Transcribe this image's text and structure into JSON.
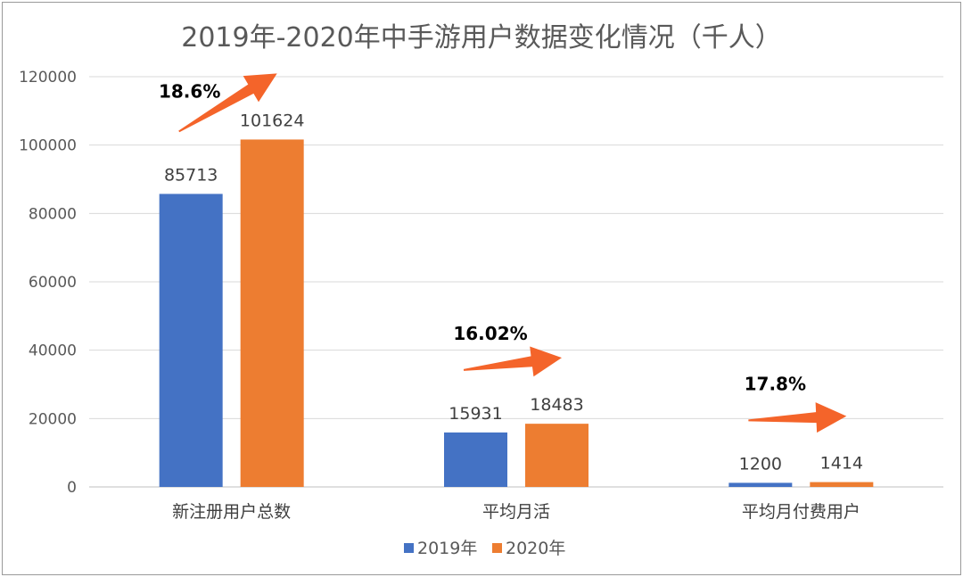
{
  "chart_data": {
    "type": "bar",
    "title": "2019年-2020年中手游用户数据变化情况（千人）",
    "categories": [
      "新注册用户总数",
      "平均月活",
      "平均月付费用户"
    ],
    "series": [
      {
        "name": "2019年",
        "values": [
          85713,
          15931,
          1200
        ],
        "color": "#4472C4"
      },
      {
        "name": "2020年",
        "values": [
          101624,
          18483,
          1414
        ],
        "color": "#ED7D31"
      }
    ],
    "data_labels": [
      [
        "85713",
        "15931",
        "1200"
      ],
      [
        "101624",
        "18483",
        "1414"
      ]
    ],
    "ylim": [
      0,
      120000
    ],
    "yticks": [
      "0",
      "20000",
      "40000",
      "60000",
      "80000",
      "100000",
      "120000"
    ],
    "grid": true,
    "legend": "bottom",
    "growth_annotations": [
      "18.6%",
      "16.02%",
      "17.8%"
    ],
    "arrow_color": "#F4642A"
  }
}
